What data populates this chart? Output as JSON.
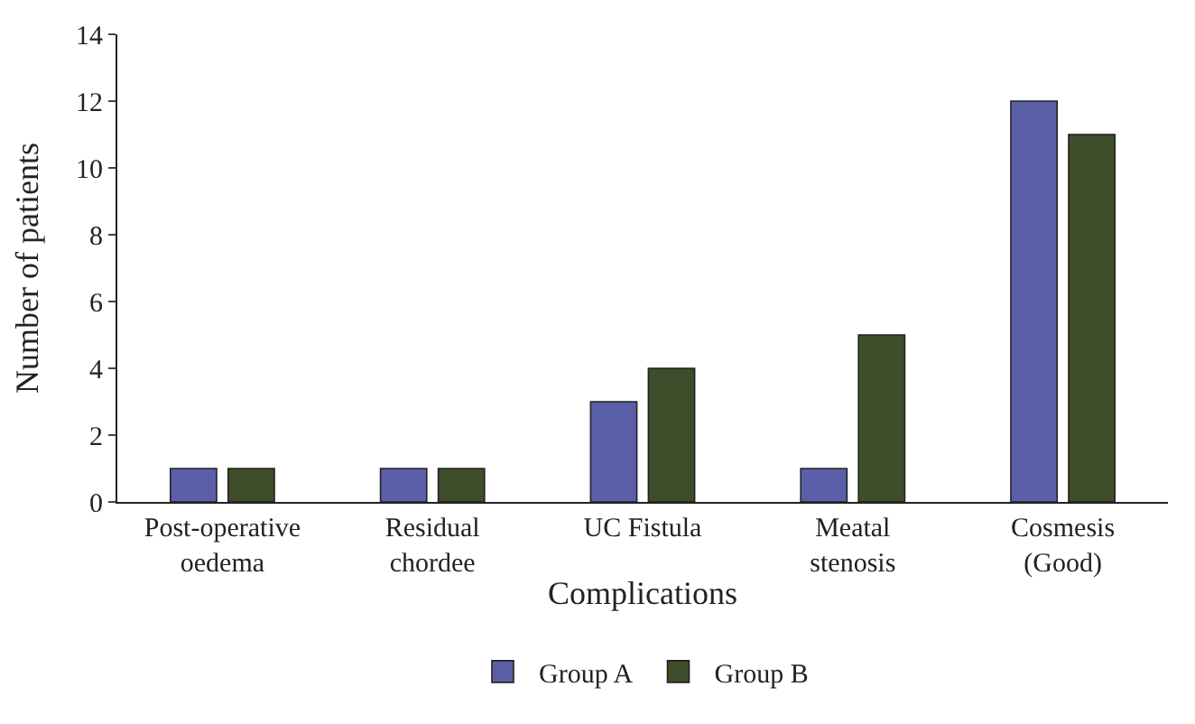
{
  "chart_data": {
    "type": "bar",
    "xlabel": "Complications",
    "ylabel": "Number of patients",
    "categories": [
      "Post-operative\noedema",
      "Residual\nchordee",
      "UC Fistula",
      "Meatal\nstenosis",
      "Cosmesis\n(Good)"
    ],
    "series": [
      {
        "name": "Group A",
        "color": "#5b5fa8",
        "values": [
          1,
          1,
          3,
          1,
          12
        ]
      },
      {
        "name": "Group B",
        "color": "#3e4d2a",
        "values": [
          1,
          1,
          4,
          5,
          11
        ]
      }
    ],
    "ylim": [
      0,
      14
    ],
    "yticks": [
      0,
      2,
      4,
      6,
      8,
      10,
      12,
      14
    ],
    "legend": "bottom"
  }
}
